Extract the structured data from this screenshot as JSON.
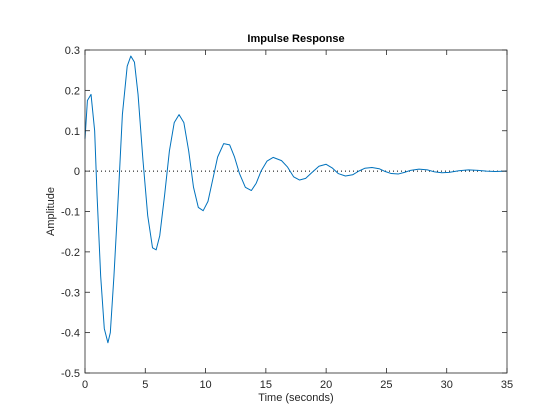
{
  "chart_data": {
    "type": "line",
    "title": "Impulse Response",
    "xlabel": "Time (seconds)",
    "ylabel": "Amplitude",
    "xlim": [
      0,
      35
    ],
    "ylim": [
      -0.5,
      0.3
    ],
    "xticks": [
      "0",
      "5",
      "10",
      "15",
      "20",
      "25",
      "30",
      "35"
    ],
    "yticks": [
      "0.3",
      "0.2",
      "0.1",
      "0",
      "-0.1",
      "-0.2",
      "-0.3",
      "-0.4",
      "-0.5"
    ],
    "grid": false,
    "zero_reference_line": "dotted",
    "line_color": "#0072bd",
    "series": [
      {
        "x": [
          0,
          0.2,
          0.5,
          0.8,
          1.0,
          1.3,
          1.6,
          1.9,
          2.1,
          2.4,
          2.8,
          3.1,
          3.5,
          3.8,
          4.1,
          4.4,
          4.8,
          5.2,
          5.6,
          5.9,
          6.2,
          6.6,
          7.0,
          7.4,
          7.8,
          8.2,
          8.6,
          9.0,
          9.4,
          9.8,
          10.2,
          10.6,
          11.0,
          11.5,
          12.0,
          12.4,
          12.8,
          13.3,
          13.8,
          14.2,
          14.6,
          15.1,
          15.6,
          16.3,
          16.8,
          17.3,
          17.8,
          18.3,
          18.8,
          19.4,
          20.0,
          20.5,
          21.0,
          21.6,
          22.2,
          22.7,
          23.2,
          23.8,
          24.4,
          24.9,
          25.4,
          26.0,
          26.5,
          27.0,
          27.7,
          28.4,
          29.0,
          29.6,
          30.2,
          31.0,
          31.8,
          32.6,
          33.3,
          34.0,
          35.0
        ],
        "y": [
          0.08,
          0.175,
          0.19,
          0.1,
          -0.06,
          -0.26,
          -0.39,
          -0.425,
          -0.4,
          -0.26,
          -0.04,
          0.14,
          0.26,
          0.285,
          0.27,
          0.19,
          0.03,
          -0.11,
          -0.19,
          -0.195,
          -0.16,
          -0.06,
          0.05,
          0.12,
          0.14,
          0.12,
          0.05,
          -0.04,
          -0.09,
          -0.098,
          -0.075,
          -0.02,
          0.035,
          0.068,
          0.065,
          0.035,
          -0.005,
          -0.04,
          -0.048,
          -0.03,
          0.0,
          0.025,
          0.034,
          0.026,
          0.01,
          -0.014,
          -0.022,
          -0.018,
          -0.004,
          0.012,
          0.017,
          0.008,
          -0.006,
          -0.012,
          -0.009,
          0.0,
          0.007,
          0.009,
          0.006,
          -0.001,
          -0.006,
          -0.007,
          -0.003,
          0.002,
          0.005,
          0.003,
          -0.002,
          -0.004,
          -0.003,
          0.001,
          0.003,
          0.002,
          0.0,
          -0.001,
          0.0
        ]
      }
    ]
  }
}
